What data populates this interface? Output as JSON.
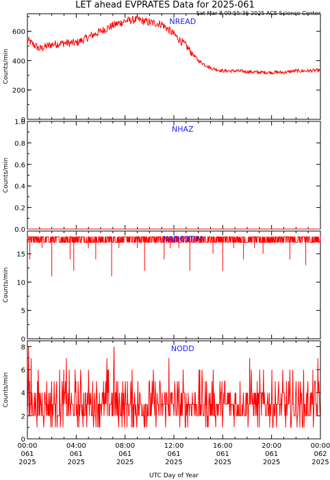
{
  "header": {
    "title": "LET ahead EVPRATES Data for 2025-061",
    "timestamp": "Sat Mar  8 09:55:36 2025 ACE Science Center"
  },
  "colors": {
    "series": "#ff0000",
    "panel_label": "#1a1aff",
    "axis": "#000000"
  },
  "chart_data": [
    {
      "type": "line",
      "series": [
        {
          "name": "NREAD",
          "color": "#ff0000",
          "x": [
            0,
            1,
            2,
            3,
            4,
            5,
            6,
            7,
            8,
            9,
            10,
            11,
            12,
            13,
            14,
            15,
            16,
            17,
            18,
            19,
            20,
            21,
            22,
            23,
            24
          ],
          "values": [
            540,
            480,
            510,
            520,
            520,
            560,
            600,
            640,
            670,
            680,
            660,
            650,
            580,
            500,
            400,
            350,
            330,
            330,
            325,
            320,
            320,
            320,
            330,
            330,
            335
          ]
        }
      ],
      "ylabel": "Counts/min",
      "ylim": [
        0,
        720
      ],
      "yticks": [
        0,
        200,
        400,
        600
      ]
    },
    {
      "type": "line",
      "series": [
        {
          "name": "NHAZ",
          "color": "#ff0000",
          "x": [
            0,
            24
          ],
          "values": [
            0,
            0
          ]
        }
      ],
      "ylabel": "Counts/min",
      "ylim": [
        0,
        1
      ],
      "yticks": [
        0.0,
        0.2,
        0.4,
        0.6,
        0.8,
        1.0
      ]
    },
    {
      "type": "line",
      "series": [
        {
          "name": "NADCSTIM",
          "color": "#ff0000",
          "baseline": 18,
          "dips": [
            [
              0.2,
              14
            ],
            [
              0.6,
              17
            ],
            [
              1.2,
              16
            ],
            [
              2.0,
              11
            ],
            [
              3.1,
              17
            ],
            [
              3.5,
              14
            ],
            [
              3.8,
              12
            ],
            [
              5.0,
              16
            ],
            [
              5.6,
              14
            ],
            [
              6.4,
              17
            ],
            [
              6.9,
              11
            ],
            [
              7.5,
              16
            ],
            [
              8.4,
              17
            ],
            [
              9.0,
              16
            ],
            [
              9.6,
              12
            ],
            [
              10.4,
              17
            ],
            [
              11.2,
              14
            ],
            [
              11.7,
              16
            ],
            [
              12.4,
              16
            ],
            [
              13.3,
              12
            ],
            [
              14.5,
              17
            ],
            [
              15.2,
              15
            ],
            [
              16.0,
              12
            ],
            [
              16.9,
              16
            ],
            [
              17.7,
              14
            ],
            [
              18.6,
              16
            ],
            [
              19.3,
              15
            ],
            [
              20.8,
              17
            ],
            [
              21.5,
              14
            ],
            [
              22.8,
              13
            ],
            [
              23.4,
              17
            ]
          ]
        }
      ],
      "ylabel": "Counts/min",
      "ylim": [
        0,
        19
      ],
      "yticks": [
        0,
        5,
        10,
        15
      ]
    },
    {
      "type": "line",
      "series": [
        {
          "name": "NODD",
          "color": "#ff0000",
          "typical_range": [
            1,
            6
          ],
          "spikes": [
            [
              0.1,
              8
            ],
            [
              0.3,
              7
            ],
            [
              3.2,
              7
            ],
            [
              6.5,
              7
            ],
            [
              7.1,
              8
            ],
            [
              11.6,
              7
            ],
            [
              18.2,
              7
            ],
            [
              23.8,
              7
            ]
          ]
        }
      ],
      "ylabel": "Counts/min",
      "ylim": [
        0,
        8.5
      ],
      "yticks": [
        0,
        2,
        4,
        6,
        8
      ]
    }
  ],
  "x_axis": {
    "ticks": [
      {
        "line1": "00:00",
        "line2": "061",
        "line3": "2025"
      },
      {
        "line1": "04:00",
        "line2": "061",
        "line3": "2025"
      },
      {
        "line1": "08:00",
        "line2": "061",
        "line3": "2025"
      },
      {
        "line1": "12:00",
        "line2": "061",
        "line3": "2025"
      },
      {
        "line1": "16:00",
        "line2": "061",
        "line3": "2025"
      },
      {
        "line1": "20:00",
        "line2": "061",
        "line3": "2025"
      },
      {
        "line1": "00:00",
        "line2": "062",
        "line3": "2025"
      }
    ],
    "label": "UTC Day of Year"
  }
}
